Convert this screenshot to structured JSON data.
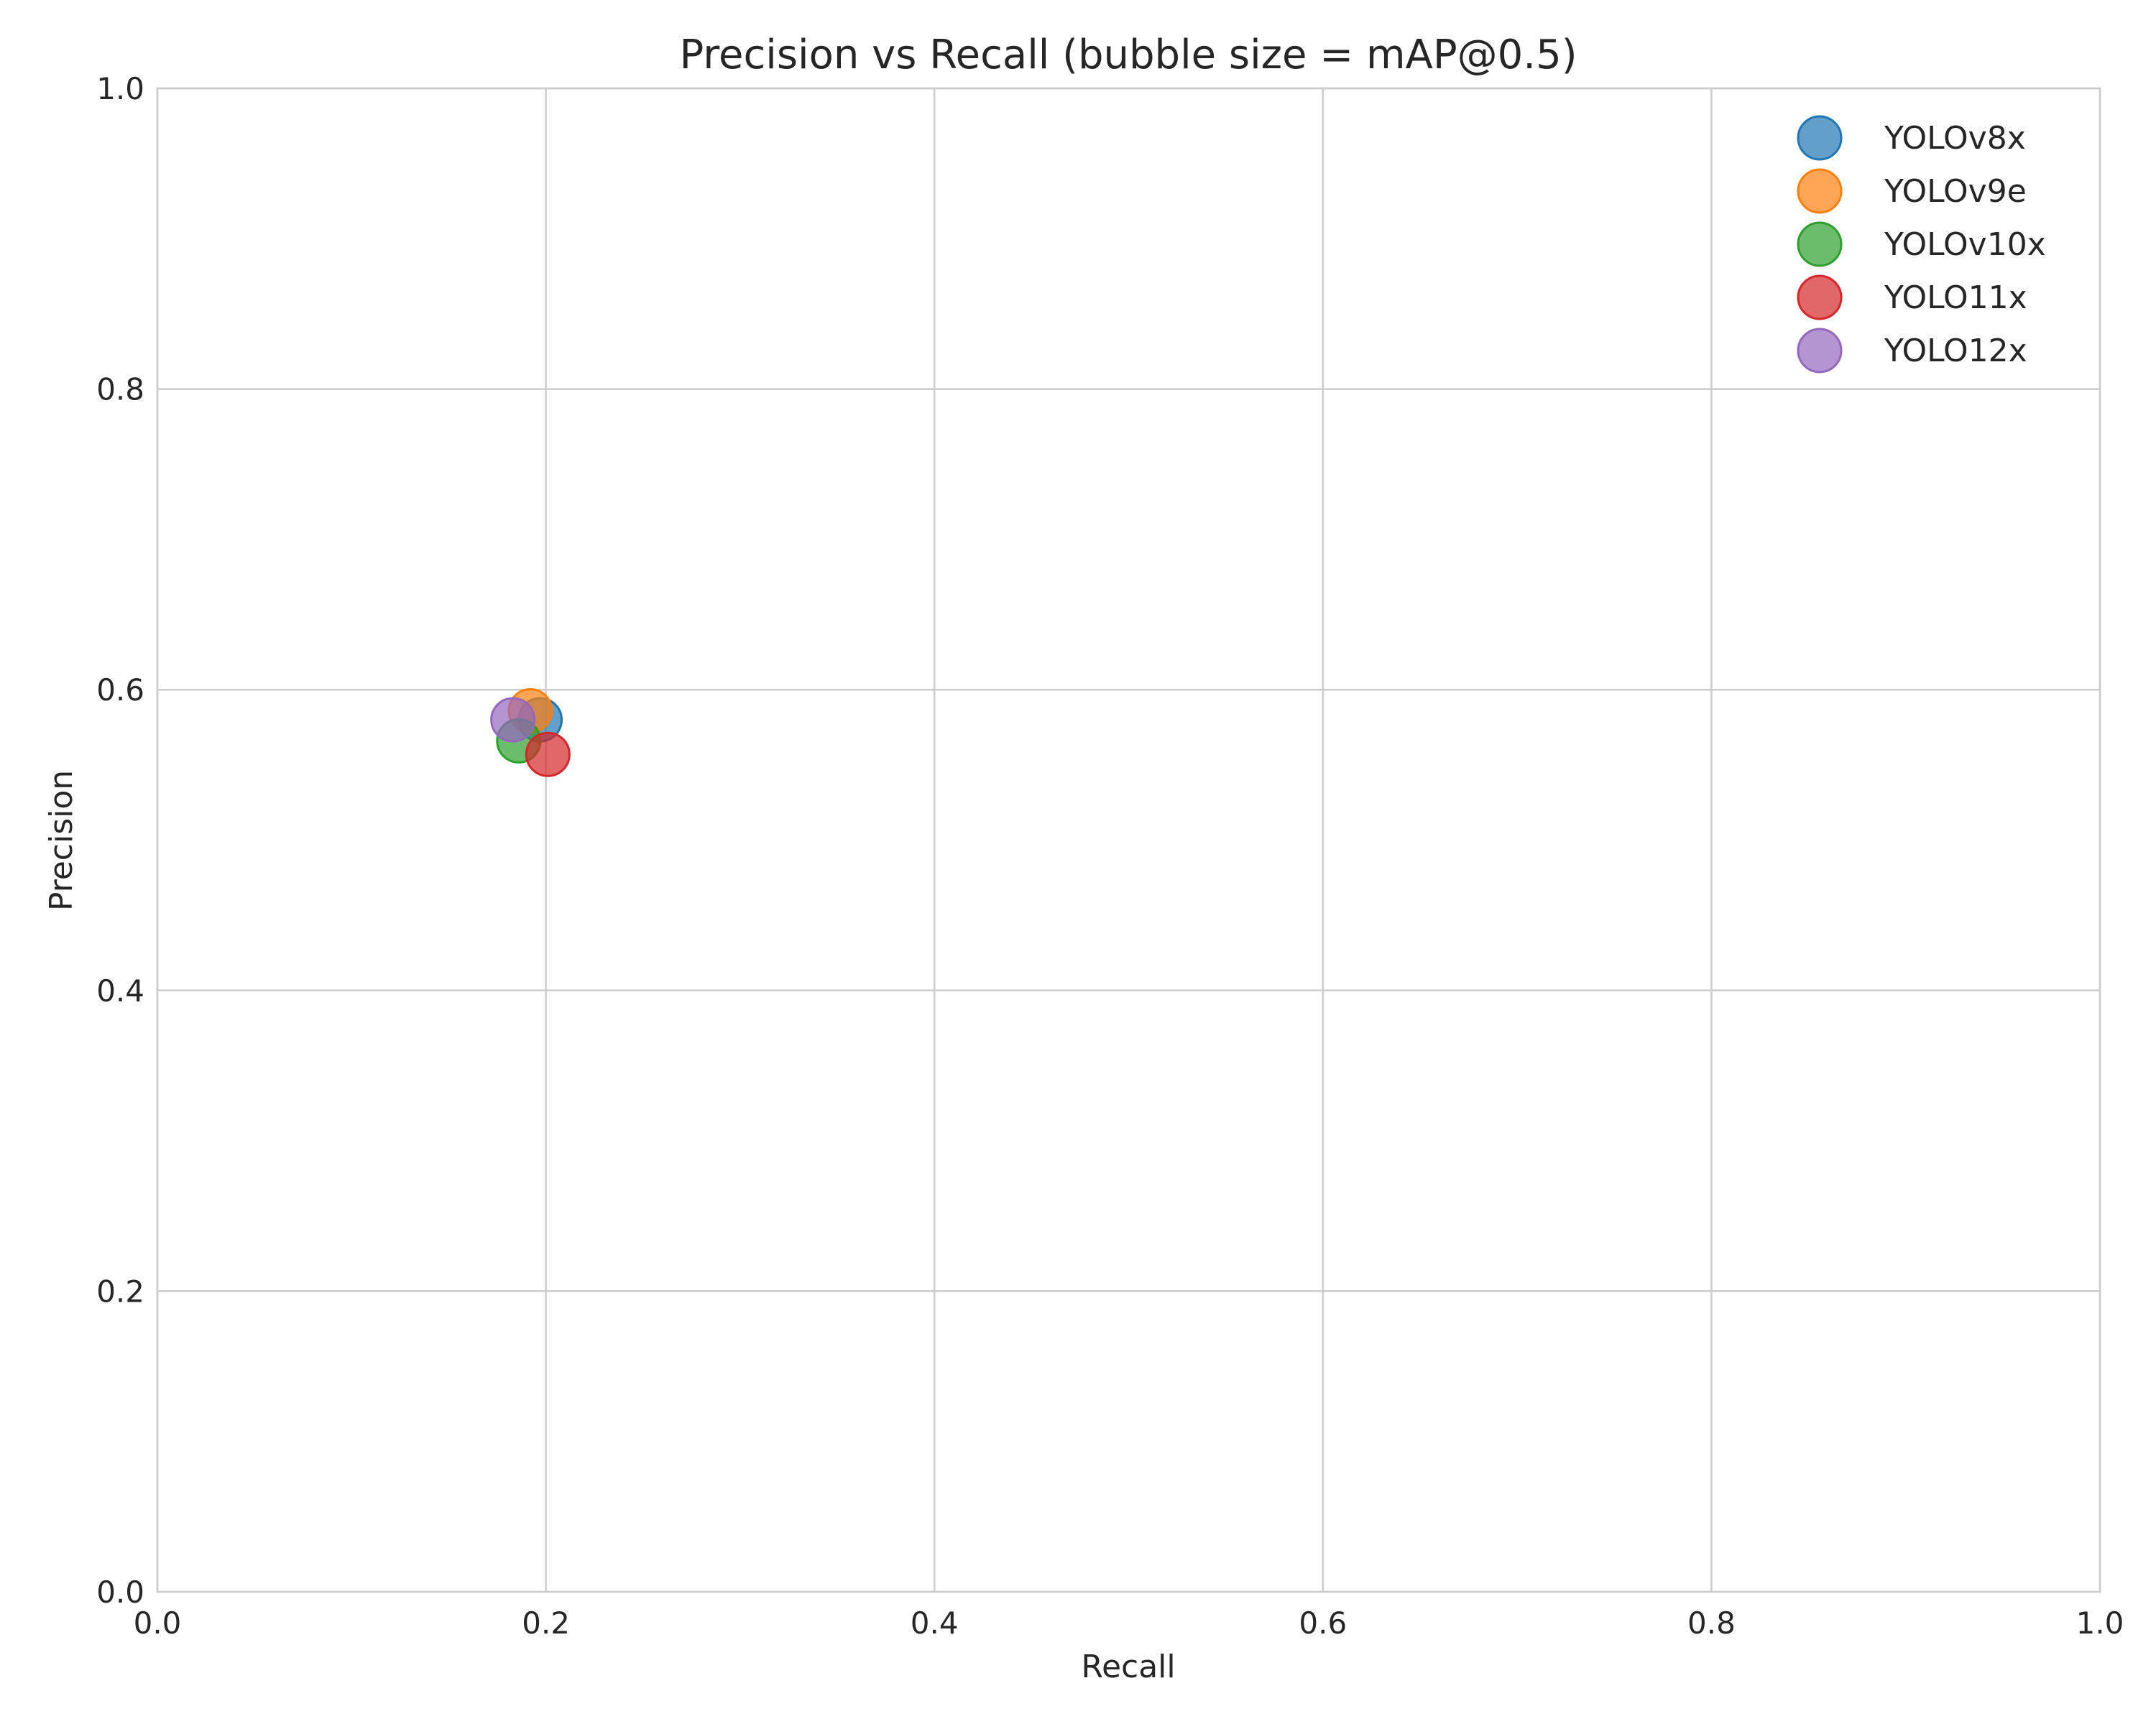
{
  "chart_data": {
    "type": "scatter",
    "title": "Precision vs Recall (bubble size = mAP@0.5)",
    "xlabel": "Recall",
    "ylabel": "Precision",
    "xlim": [
      0.0,
      1.0
    ],
    "ylim": [
      0.0,
      1.0
    ],
    "xticks": [
      "0.0",
      "0.2",
      "0.4",
      "0.6",
      "0.8",
      "1.0"
    ],
    "yticks": [
      "0.0",
      "0.2",
      "0.4",
      "0.6",
      "0.8",
      "1.0"
    ],
    "grid": true,
    "legend_position": "top-right",
    "series": [
      {
        "name": "YOLOv8x",
        "color": "#1f77b4",
        "x": 0.197,
        "y": 0.58
      },
      {
        "name": "YOLOv9e",
        "color": "#ff7f0e",
        "x": 0.192,
        "y": 0.586
      },
      {
        "name": "YOLOv10x",
        "color": "#2ca02c",
        "x": 0.186,
        "y": 0.566
      },
      {
        "name": "YOLO11x",
        "color": "#d62728",
        "x": 0.201,
        "y": 0.557
      },
      {
        "name": "YOLO12x",
        "color": "#9467bd",
        "x": 0.183,
        "y": 0.58
      }
    ]
  }
}
